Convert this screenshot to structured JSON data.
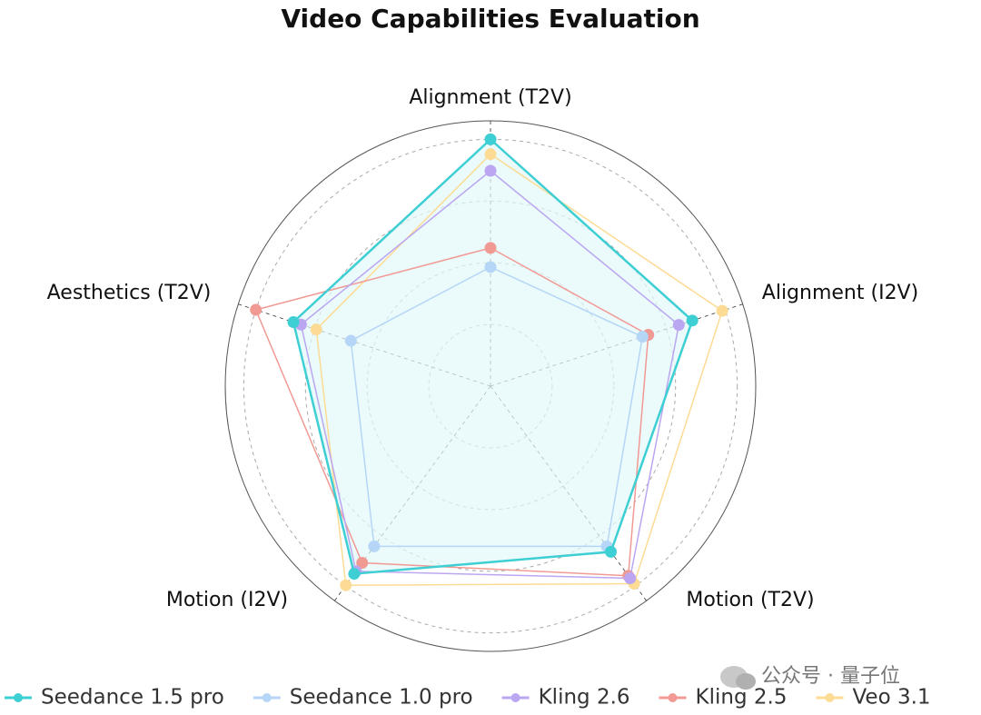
{
  "chart_data": {
    "type": "radar",
    "title": "Video Capabilities Evaluation",
    "categories": [
      "Alignment (T2V)",
      "Alignment (I2V)",
      "Motion (T2V)",
      "Motion (I2V)",
      "Aesthetics (T2V)"
    ],
    "rlim": [
      0,
      4.3
    ],
    "rticks": [
      1,
      2,
      3,
      4
    ],
    "grid": true,
    "series": [
      {
        "name": "Seedance 1.5 pro",
        "color": "#3dcfd3",
        "fill": "#e3f8f9",
        "values": [
          4.0,
          3.44,
          3.32,
          3.76,
          3.36
        ]
      },
      {
        "name": "Seedance 1.0 pro",
        "color": "#b5d6f6",
        "values": [
          1.93,
          2.59,
          3.21,
          3.21,
          2.38
        ]
      },
      {
        "name": "Kling 2.6",
        "color": "#bba6f1",
        "values": [
          3.49,
          3.21,
          3.85,
          3.71,
          3.23
        ]
      },
      {
        "name": "Kling 2.5",
        "color": "#f19a94",
        "values": [
          2.24,
          2.69,
          3.8,
          3.54,
          4.0
        ]
      },
      {
        "name": "Veo 3.1",
        "color": "#fcdb94",
        "values": [
          3.76,
          3.95,
          3.96,
          3.99,
          2.97
        ]
      }
    ]
  },
  "watermark": "公众号 · 量子位"
}
